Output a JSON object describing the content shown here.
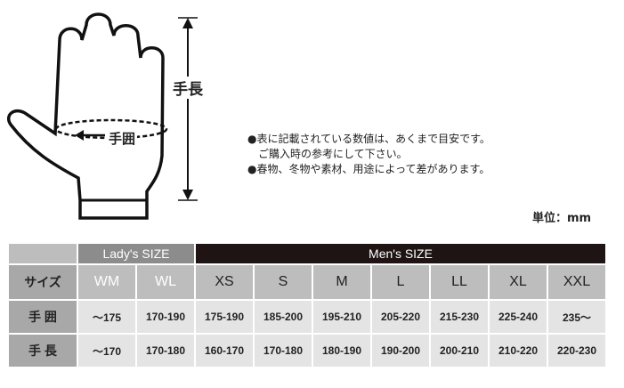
{
  "diagram": {
    "hand_length_label": "手長",
    "hand_girth_label": "手囲"
  },
  "notes": [
    "●表に記載されている数値は、あくまで目安です。",
    "　ご購入時の参考にして下さい。",
    "●春物、冬物や素材、用途によって差があります。"
  ],
  "unit": "単位：mm",
  "table": {
    "lady_header": "Lady's SIZE",
    "men_header": "Men's SIZE",
    "size_label": "サイズ",
    "sizes": [
      "WM",
      "WL",
      "XS",
      "S",
      "M",
      "L",
      "LL",
      "XL",
      "XXL"
    ],
    "rows": [
      {
        "label": "手 囲",
        "values": [
          "～175",
          "170-190",
          "175-190",
          "185-200",
          "195-210",
          "205-220",
          "215-230",
          "225-240",
          "235～"
        ]
      },
      {
        "label": "手 長",
        "values": [
          "～170",
          "170-180",
          "160-170",
          "170-180",
          "180-190",
          "190-200",
          "200-210",
          "210-220",
          "220-230"
        ]
      }
    ],
    "colors": {
      "lady": "#8c8c8c",
      "men": "#1e1414",
      "header_cell": "#a8a8a8",
      "size_row": "#bdbdbd",
      "data_row": "#e4e4e4"
    }
  }
}
